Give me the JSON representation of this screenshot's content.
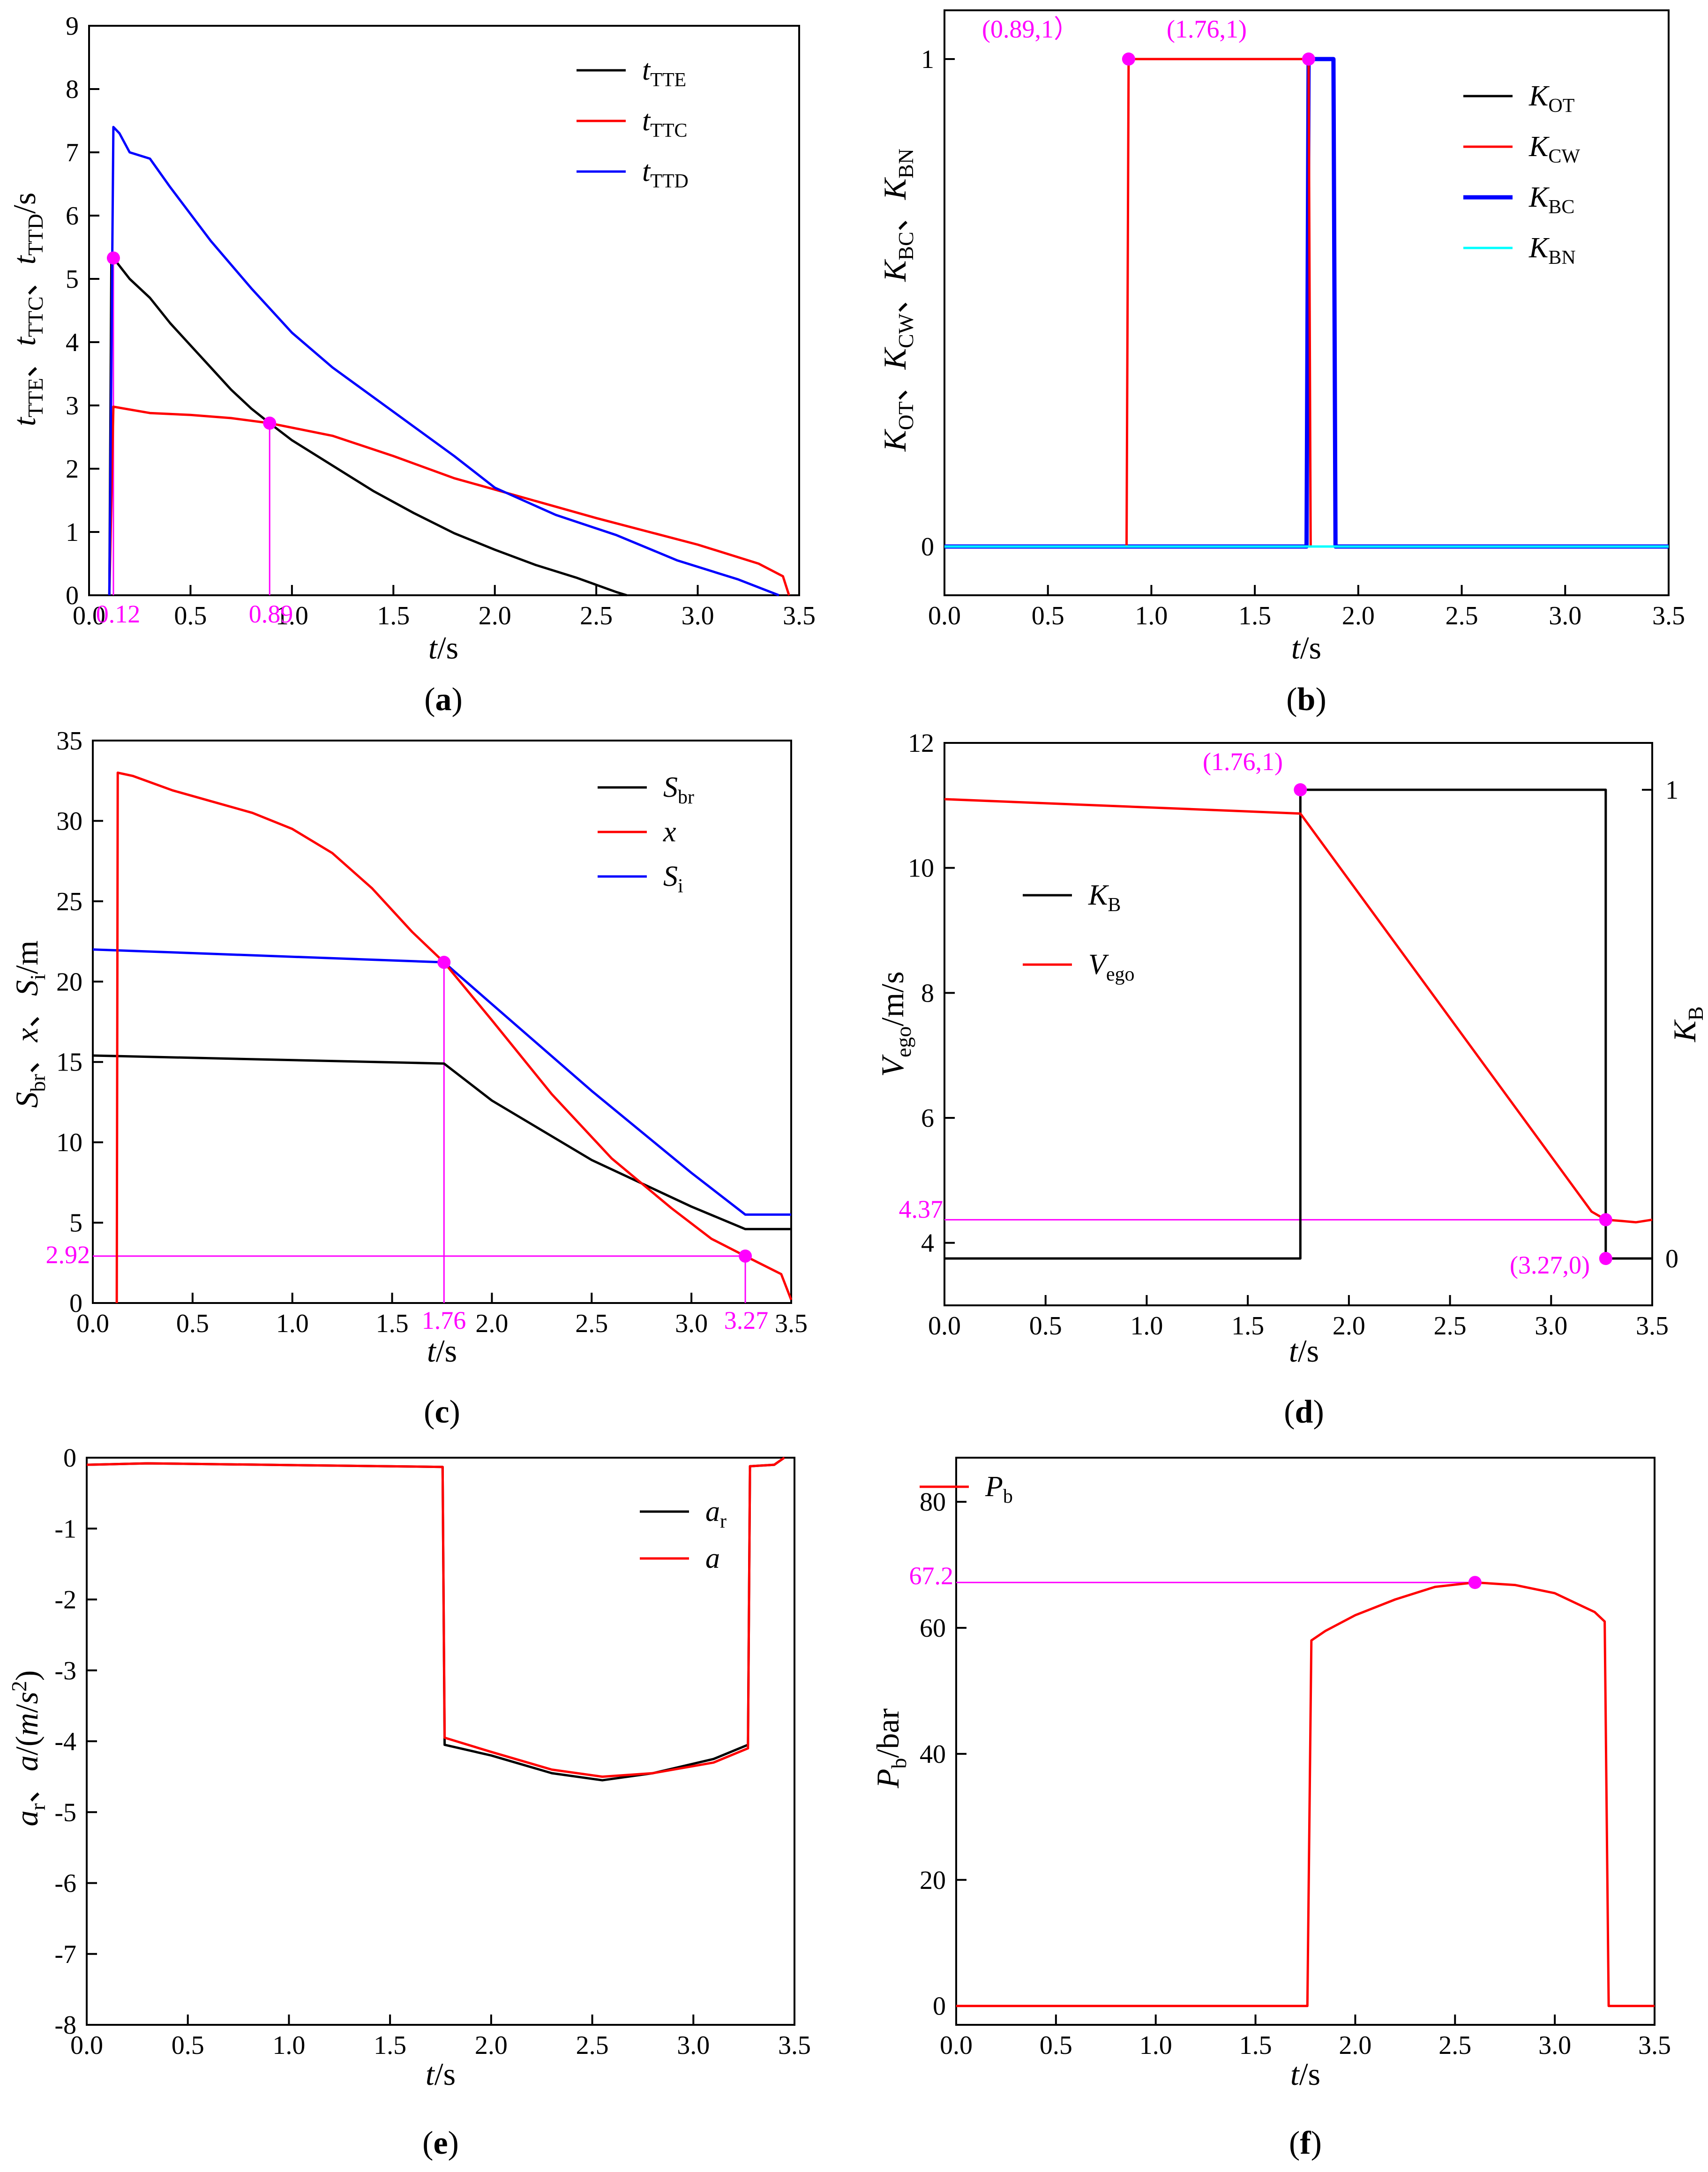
{
  "chart_data": [
    {
      "id": "a",
      "type": "line",
      "caption": "(a)",
      "caption_letter": "a",
      "xlabel": "t/s",
      "ylabel": "tTTE、tTTC、tTTD/s",
      "xlim": [
        0,
        3.5
      ],
      "ylim": [
        0,
        9
      ],
      "xticks": [
        "0.0",
        "0.5",
        "1.0",
        "1.5",
        "2.0",
        "2.5",
        "3.0",
        "3.5"
      ],
      "yticks": [
        "0",
        "1",
        "2",
        "3",
        "4",
        "5",
        "6",
        "7",
        "8",
        "9"
      ],
      "legend": [
        {
          "main": "t",
          "sub": "TTE",
          "color": "#000000"
        },
        {
          "main": "t",
          "sub": "TTC",
          "color": "#ff0000"
        },
        {
          "main": "t",
          "sub": "TTD",
          "color": "#0000ff"
        }
      ],
      "series": [
        {
          "name": "tTTE",
          "color": "#000000",
          "x": [
            0.1,
            0.11,
            0.12,
            0.2,
            0.3,
            0.4,
            0.5,
            0.6,
            0.7,
            0.8,
            0.89,
            1.0,
            1.2,
            1.4,
            1.6,
            1.8,
            2.0,
            2.2,
            2.4,
            2.6,
            2.65
          ],
          "y": [
            0,
            5.3,
            5.33,
            5.0,
            4.7,
            4.3,
            3.95,
            3.6,
            3.25,
            2.95,
            2.72,
            2.45,
            2.05,
            1.65,
            1.3,
            0.98,
            0.72,
            0.48,
            0.28,
            0.05,
            0
          ]
        },
        {
          "name": "tTTC",
          "color": "#ff0000",
          "x": [
            0.1,
            0.12,
            0.3,
            0.5,
            0.7,
            0.89,
            1.2,
            1.5,
            1.8,
            2.0,
            2.5,
            3.0,
            3.3,
            3.42,
            3.45
          ],
          "y": [
            0,
            2.98,
            2.88,
            2.85,
            2.8,
            2.72,
            2.52,
            2.2,
            1.85,
            1.67,
            1.22,
            0.8,
            0.5,
            0.3,
            0
          ]
        },
        {
          "name": "tTTD",
          "color": "#0000ff",
          "x": [
            0.1,
            0.12,
            0.15,
            0.2,
            0.3,
            0.4,
            0.6,
            0.8,
            1.0,
            1.2,
            1.5,
            1.8,
            2.0,
            2.3,
            2.6,
            2.9,
            3.0,
            3.2,
            3.4
          ],
          "y": [
            0,
            7.4,
            7.3,
            7.0,
            6.9,
            6.45,
            5.6,
            4.85,
            4.15,
            3.6,
            2.9,
            2.2,
            1.7,
            1.27,
            0.95,
            0.55,
            0.45,
            0.25,
            0
          ]
        }
      ],
      "points": [
        {
          "x": 0.12,
          "y": 5.33
        },
        {
          "x": 0.89,
          "y": 2.72
        }
      ],
      "annotations": [
        {
          "text": "0.12",
          "x": 0.12
        },
        {
          "text": "0.89",
          "x": 0.89
        }
      ]
    },
    {
      "id": "b",
      "type": "line",
      "caption": "(b)",
      "caption_letter": "b",
      "xlabel": "t/s",
      "ylabel": "KOT、KCW、KBC、KBN",
      "xlim": [
        0,
        3.5
      ],
      "ylim": [
        -0.1,
        1.1
      ],
      "xticks": [
        "0.0",
        "0.5",
        "1.0",
        "1.5",
        "2.0",
        "2.5",
        "3.0",
        "3.5"
      ],
      "yticks": [
        "0",
        "1"
      ],
      "legend": [
        {
          "main": "K",
          "sub": "OT",
          "color": "#000000"
        },
        {
          "main": "K",
          "sub": "CW",
          "color": "#ff0000"
        },
        {
          "main": "K",
          "sub": "BC",
          "color": "#0000ff"
        },
        {
          "main": "K",
          "sub": "BN",
          "color": "#00ffff"
        }
      ],
      "series": [
        {
          "name": "KOT",
          "color": "#000000",
          "x": [
            0,
            3.5
          ],
          "y": [
            0,
            0
          ]
        },
        {
          "name": "KBC",
          "color": "#0000ff",
          "x": [
            0,
            1.75,
            1.76,
            1.88,
            1.89,
            3.5
          ],
          "y": [
            0,
            0,
            1,
            1,
            0,
            0
          ]
        },
        {
          "name": "KCW",
          "color": "#ff0000",
          "x": [
            0,
            0.88,
            0.89,
            1.76,
            1.77,
            3.5
          ],
          "y": [
            0,
            0,
            1,
            1,
            0,
            0
          ]
        },
        {
          "name": "KBN",
          "color": "#00ffff",
          "x": [
            0,
            3.5
          ],
          "y": [
            0,
            0
          ]
        }
      ],
      "points": [
        {
          "x": 0.89,
          "y": 1
        },
        {
          "x": 1.76,
          "y": 1
        }
      ],
      "annotations": [
        {
          "text": "(0.89,1）",
          "x": 0.89,
          "y": 1
        },
        {
          "text": "(1.76,1)",
          "x": 1.76,
          "y": 1
        }
      ]
    },
    {
      "id": "c",
      "type": "line",
      "caption": "(c)",
      "caption_letter": "c",
      "xlabel": "t/s",
      "ylabel": "Sbr、x、Si/m",
      "xlim": [
        0,
        3.5
      ],
      "ylim": [
        0,
        35
      ],
      "xticks": [
        "0.0",
        "0.5",
        "1.0",
        "1.5",
        "2.0",
        "2.5",
        "3.0",
        "3.5"
      ],
      "yticks": [
        "0",
        "5",
        "10",
        "15",
        "20",
        "25",
        "30",
        "35"
      ],
      "legend": [
        {
          "main": "S",
          "sub": "br",
          "color": "#000000"
        },
        {
          "main": "x",
          "sub": "",
          "color": "#ff0000"
        },
        {
          "main": "S",
          "sub": "i",
          "color": "#0000ff"
        }
      ],
      "series": [
        {
          "name": "Sbr",
          "color": "#000000",
          "x": [
            0,
            1.76,
            2.0,
            2.5,
            3.0,
            3.27,
            3.5
          ],
          "y": [
            15.4,
            14.9,
            12.6,
            8.9,
            6.0,
            4.6,
            4.6
          ]
        },
        {
          "name": "Si",
          "color": "#0000ff",
          "x": [
            0,
            1.76,
            2.0,
            2.5,
            3.0,
            3.27,
            3.5
          ],
          "y": [
            22,
            21.2,
            18.6,
            13.2,
            8.1,
            5.5,
            5.5
          ]
        },
        {
          "name": "x",
          "color": "#ff0000",
          "x": [
            0.12,
            0.125,
            0.2,
            0.4,
            0.6,
            0.8,
            1.0,
            1.2,
            1.4,
            1.6,
            1.76,
            2.0,
            2.3,
            2.6,
            2.9,
            3.1,
            3.27,
            3.45,
            3.5
          ],
          "y": [
            0,
            33,
            32.8,
            31.9,
            31.2,
            30.5,
            29.5,
            28,
            25.8,
            23.1,
            21.2,
            17.6,
            13.0,
            9.0,
            5.9,
            4.0,
            2.92,
            1.8,
            0.2
          ]
        }
      ],
      "points": [
        {
          "x": 1.76,
          "y": 21.2
        },
        {
          "x": 3.27,
          "y": 2.92
        }
      ],
      "annotations": [
        {
          "text": "1.76",
          "x": 1.76
        },
        {
          "text": "3.27",
          "x": 3.27
        },
        {
          "text": "2.92",
          "y": 2.92
        }
      ]
    },
    {
      "id": "d",
      "type": "line",
      "caption": "(d)",
      "caption_letter": "d",
      "xlabel": "t/s",
      "ylabel": "Vego/m/s",
      "ylabel_right": "KB",
      "xlim": [
        0,
        3.5
      ],
      "ylim": [
        3.0,
        12
      ],
      "ylim_right": [
        -0.1,
        1.1
      ],
      "xticks": [
        "0.0",
        "0.5",
        "1.0",
        "1.5",
        "2.0",
        "2.5",
        "3.0",
        "3.5"
      ],
      "yticks": [
        "4",
        "6",
        "8",
        "10",
        "12"
      ],
      "yticks_right": [
        "0",
        "1"
      ],
      "legend": [
        {
          "main": "K",
          "sub": "B",
          "color": "#000000"
        },
        {
          "main": "V",
          "sub": "ego",
          "color": "#ff0000"
        }
      ],
      "series": [
        {
          "name": "KB",
          "color": "#000000",
          "axis": "right",
          "x": [
            0,
            1.76,
            1.76,
            3.27,
            3.27,
            3.5
          ],
          "y": [
            0,
            0,
            1,
            1,
            0,
            0
          ]
        },
        {
          "name": "Vego",
          "color": "#ff0000",
          "axis": "left",
          "x": [
            0,
            1.76,
            3.2,
            3.27,
            3.35,
            3.42,
            3.5
          ],
          "y": [
            11.1,
            10.87,
            4.5,
            4.37,
            4.35,
            4.33,
            4.37
          ]
        }
      ],
      "points": [
        {
          "x": 1.76,
          "y": 1,
          "axis": "right"
        },
        {
          "x": 3.27,
          "y": 4.37,
          "axis": "left"
        },
        {
          "x": 3.27,
          "y": 0,
          "axis": "right"
        }
      ],
      "annotations": [
        {
          "text": "(1.76,1)"
        },
        {
          "text": "4.37",
          "y": 4.37
        },
        {
          "text": "(3.27,0)"
        }
      ]
    },
    {
      "id": "e",
      "type": "line",
      "caption": "(e)",
      "caption_letter": "e",
      "xlabel": "t/s",
      "ylabel": "ar、a/(m/s2)",
      "xlim": [
        0,
        3.5
      ],
      "ylim": [
        -8,
        0
      ],
      "xticks": [
        "0.0",
        "0.5",
        "1.0",
        "1.5",
        "2.0",
        "2.5",
        "3.0",
        "3.5"
      ],
      "yticks": [
        "0",
        "-1",
        "-2",
        "-3",
        "-4",
        "-5",
        "-6",
        "-7",
        "-8"
      ],
      "legend": [
        {
          "main": "a",
          "sub": "r",
          "color": "#000000"
        },
        {
          "main": "a",
          "sub": "",
          "color": "#ff0000"
        }
      ],
      "series": [
        {
          "name": "ar",
          "color": "#000000",
          "x": [
            0,
            0.3,
            1.76,
            1.77,
            2.0,
            2.3,
            2.55,
            2.8,
            3.1,
            3.27,
            3.28,
            3.4,
            3.45
          ],
          "y": [
            -0.1,
            -0.08,
            -0.13,
            -4.05,
            -4.2,
            -4.45,
            -4.55,
            -4.45,
            -4.25,
            -4.05,
            -0.12,
            -0.1,
            0
          ]
        },
        {
          "name": "a",
          "color": "#ff0000",
          "x": [
            0,
            0.3,
            1.76,
            1.77,
            2.0,
            2.3,
            2.55,
            2.8,
            3.1,
            3.27,
            3.28,
            3.4,
            3.45
          ],
          "y": [
            -0.1,
            -0.08,
            -0.13,
            -3.95,
            -4.15,
            -4.4,
            -4.5,
            -4.45,
            -4.3,
            -4.1,
            -0.12,
            -0.1,
            0
          ]
        }
      ]
    },
    {
      "id": "f",
      "type": "line",
      "caption": "(f)",
      "caption_letter": "f",
      "xlabel": "t/s",
      "ylabel": "Pb/bar",
      "xlim": [
        0,
        3.5
      ],
      "ylim": [
        -3,
        87
      ],
      "xticks": [
        "0.0",
        "0.5",
        "1.0",
        "1.5",
        "2.0",
        "2.5",
        "3.0",
        "3.5"
      ],
      "yticks": [
        "0",
        "20",
        "40",
        "60",
        "80"
      ],
      "legend": [
        {
          "main": "P",
          "sub": "b",
          "color": "#ff0000"
        }
      ],
      "series": [
        {
          "name": "Pb",
          "color": "#ff0000",
          "x": [
            0,
            1.76,
            1.78,
            1.85,
            2.0,
            2.2,
            2.4,
            2.6,
            2.8,
            3.0,
            3.2,
            3.25,
            3.27,
            3.5
          ],
          "y": [
            0,
            0,
            58,
            59.5,
            62,
            64.5,
            66.5,
            67.2,
            66.8,
            65.5,
            62.5,
            61,
            0,
            0
          ]
        }
      ],
      "points": [
        {
          "x": 2.6,
          "y": 67.2
        }
      ],
      "annotations": [
        {
          "text": "67.2",
          "y": 67.2
        }
      ]
    }
  ]
}
